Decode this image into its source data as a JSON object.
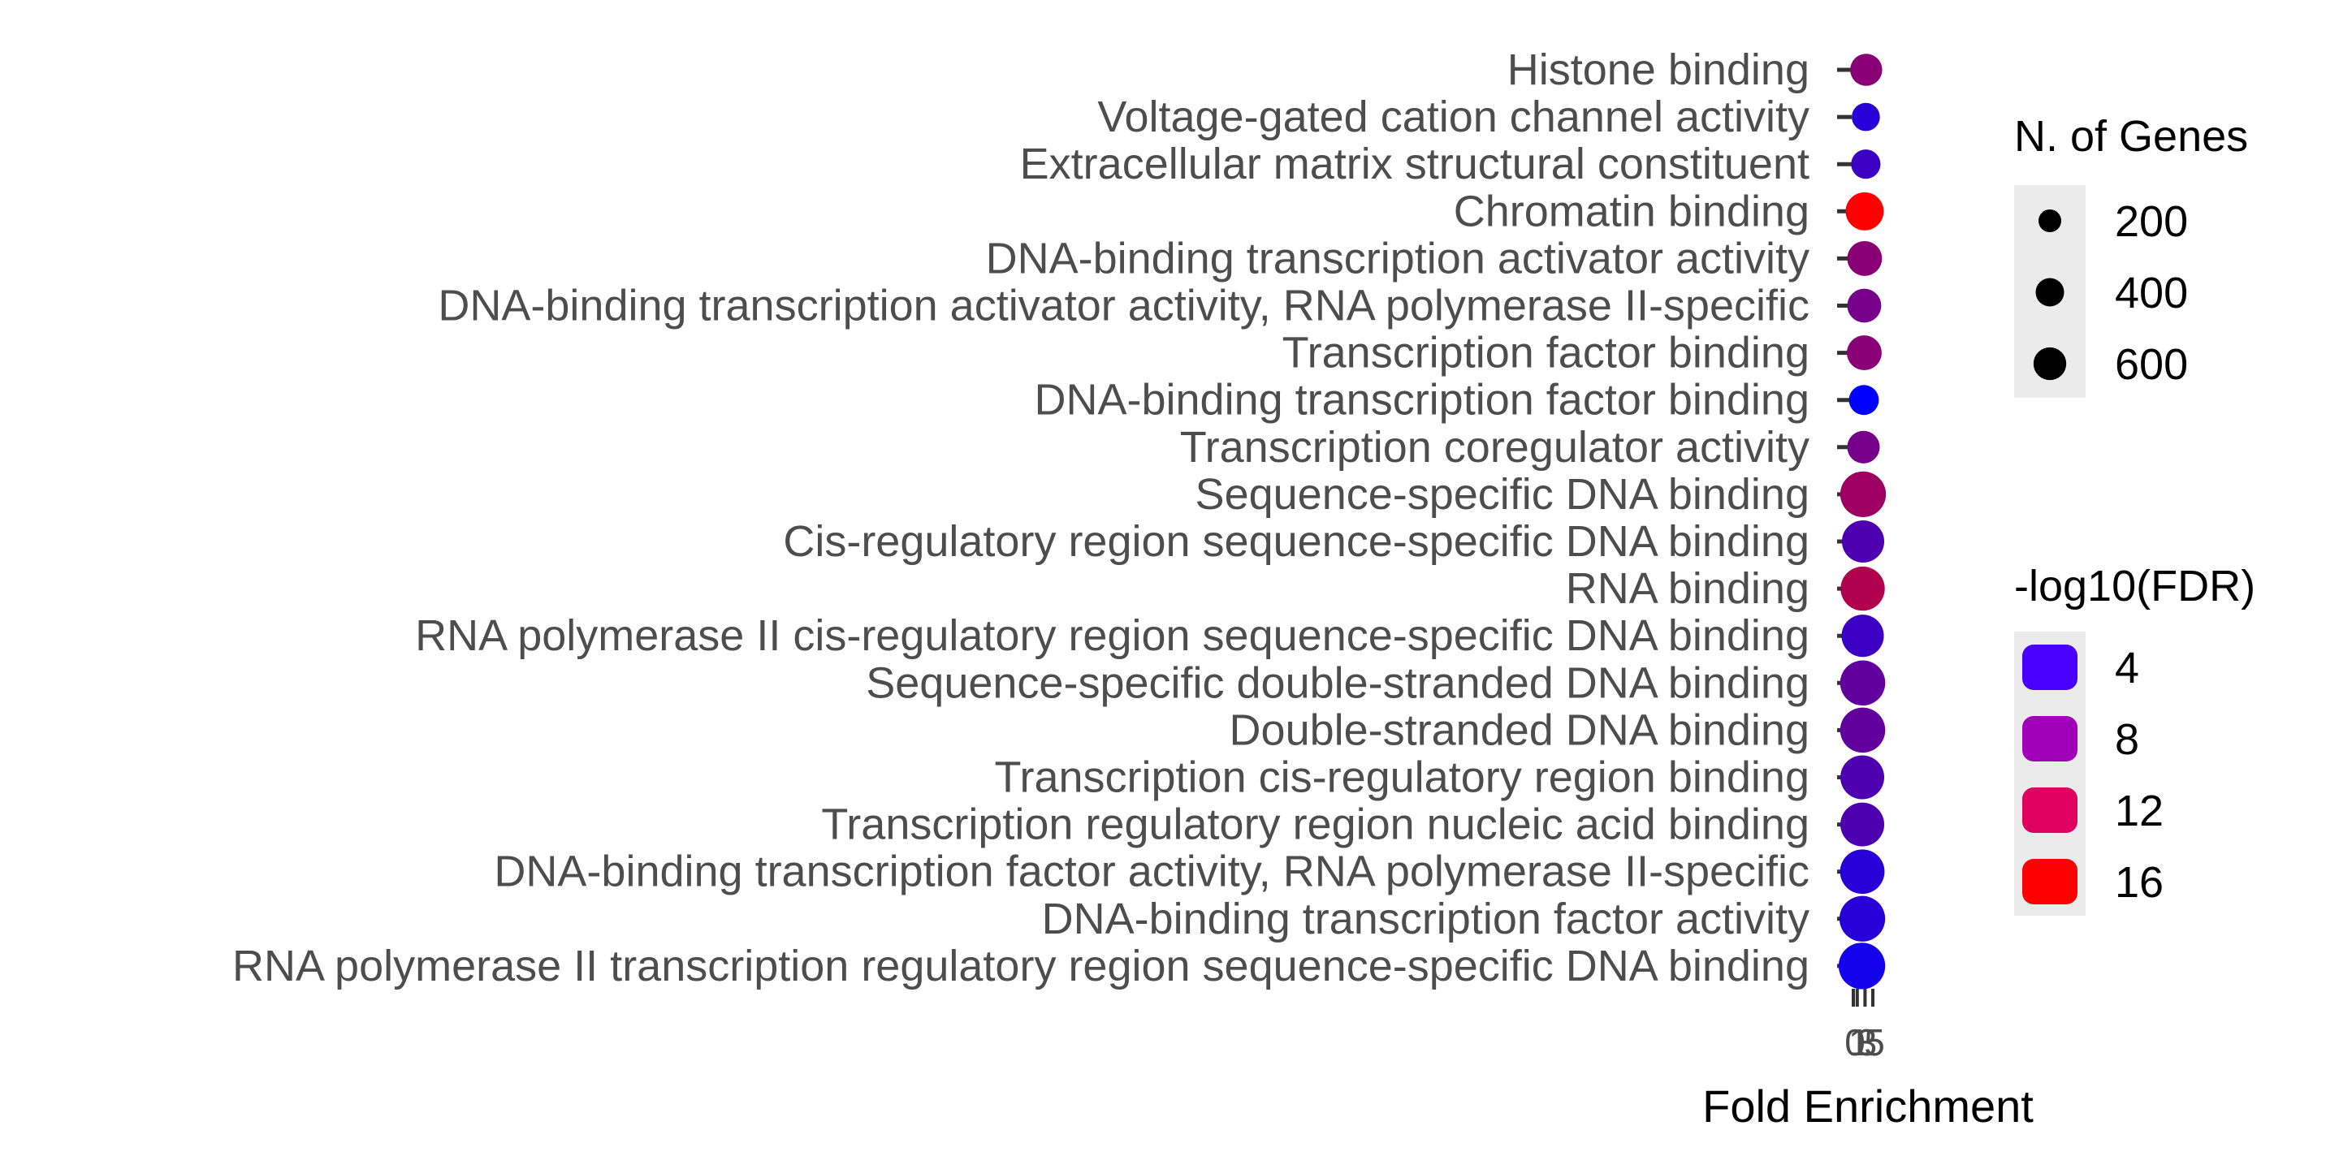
{
  "chart_data": {
    "type": "lollipop",
    "xlabel": "Fold Enrichment",
    "x_ticks": [
      "0",
      "1",
      "3",
      "5"
    ],
    "categories": [
      "Histone binding",
      "Voltage-gated cation channel activity",
      "Extracellular matrix structural constituent",
      "Chromatin binding",
      "DNA-binding transcription activator activity",
      "DNA-binding transcription activator activity, RNA polymerase II-specific",
      "Transcription factor binding",
      "DNA-binding transcription factor binding",
      "Transcription coregulator activity",
      "Sequence-specific DNA binding",
      "Cis-regulatory region sequence-specific DNA binding",
      "RNA binding",
      "RNA polymerase II cis-regulatory region sequence-specific DNA binding",
      "Sequence-specific double-stranded DNA binding",
      "Double-stranded DNA binding",
      "Transcription cis-regulatory region binding",
      "Transcription regulatory region nucleic acid binding",
      "DNA-binding transcription factor activity, RNA polymerase II-specific",
      "DNA-binding transcription factor activity",
      "RNA polymerase II transcription regulatory region sequence-specific DNA binding"
    ],
    "fold_enrichment": [
      3.3,
      3.2,
      3.2,
      2.9,
      2.9,
      2.8,
      2.8,
      2.7,
      2.6,
      2.5,
      2.5,
      2.4,
      2.4,
      2.4,
      2.4,
      2.3,
      2.3,
      2.3,
      2.3,
      2.2
    ],
    "n_genes": [
      190,
      120,
      140,
      330,
      250,
      230,
      250,
      150,
      200,
      560,
      450,
      510,
      450,
      540,
      540,
      500,
      500,
      520,
      560,
      590
    ],
    "neg_log10_fdr": [
      10,
      5,
      6,
      16,
      10,
      9,
      10,
      3,
      9,
      11,
      7,
      12,
      6,
      8,
      8,
      7,
      7,
      5,
      5,
      4
    ],
    "size_legend": {
      "title": "N. of Genes",
      "values": [
        200,
        400,
        600
      ],
      "labels": [
        "200",
        "400",
        "600"
      ]
    },
    "color_legend": {
      "title": "-log10(FDR)",
      "values": [
        4,
        8,
        12,
        16
      ],
      "labels": [
        "4",
        "8",
        "12",
        "16"
      ],
      "colors": [
        "#4a00ff",
        "#a000b8",
        "#e00060",
        "#ff0000"
      ],
      "low_color": "#0000ff",
      "high_color": "#ff0000",
      "low_value": 3,
      "high_value": 16
    },
    "segment_color": "#333333",
    "grid": false
  }
}
